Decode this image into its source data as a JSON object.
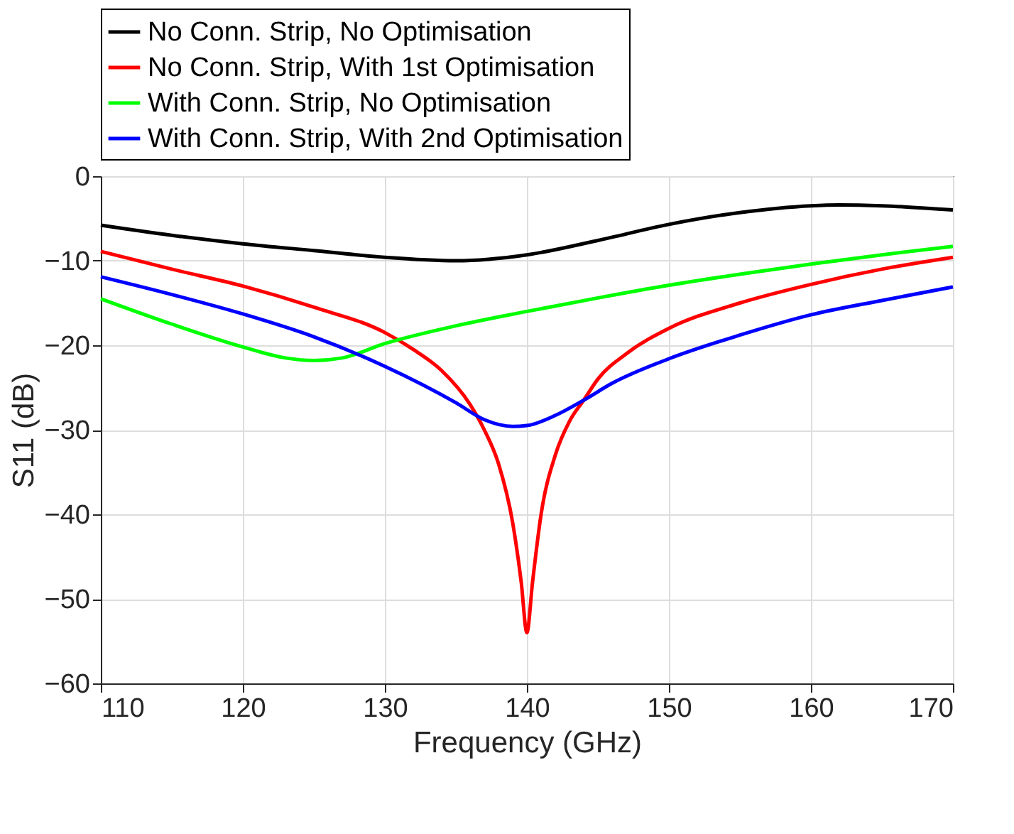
{
  "chart_data": {
    "type": "line",
    "xlabel": "Frequency (GHz)",
    "ylabel": "S11 (dB)",
    "xlim": [
      110,
      170
    ],
    "ylim": [
      -60,
      0
    ],
    "xticks": [
      110,
      120,
      130,
      140,
      150,
      160,
      170
    ],
    "yticks": [
      -60,
      -50,
      -40,
      -30,
      -20,
      -10,
      0
    ],
    "grid": true,
    "legend": "top",
    "marker": "none",
    "line_style": "solid",
    "series": [
      {
        "name": "No Conn. Strip, No Optimisation",
        "color": "#000000",
        "x": [
          110,
          115,
          120,
          125,
          130,
          135,
          140,
          145,
          150,
          155,
          160,
          162,
          165,
          170
        ],
        "values": [
          -5.8,
          -7,
          -8,
          -8.8,
          -9.6,
          -10,
          -9.3,
          -7.6,
          -5.7,
          -4.3,
          -3.5,
          -3.4,
          -3.5,
          -4
        ]
      },
      {
        "name": "No Conn. Strip, With 1st Optimisation",
        "color": "#ff0000",
        "x": [
          110,
          115,
          120,
          125,
          130,
          132,
          134,
          136,
          137,
          138,
          139,
          139.6,
          140,
          140.4,
          141,
          142,
          143,
          144,
          145,
          147,
          150,
          155,
          160,
          165,
          170
        ],
        "values": [
          -8.9,
          -11,
          -13,
          -15.5,
          -18.5,
          -20.5,
          -23,
          -27,
          -30,
          -34,
          -41,
          -48,
          -54,
          -48,
          -40,
          -33,
          -29,
          -26.5,
          -24,
          -21,
          -18,
          -15,
          -12.8,
          -11,
          -9.6
        ]
      },
      {
        "name": "With Conn. Strip, No Optimisation",
        "color": "#00ff00",
        "x": [
          110,
          115,
          120,
          123,
          125,
          127,
          130,
          135,
          140,
          145,
          150,
          155,
          160,
          165,
          170
        ],
        "values": [
          -14.5,
          -17.5,
          -20.2,
          -21.5,
          -21.8,
          -21.5,
          -19.8,
          -17.7,
          -16,
          -14.4,
          -12.9,
          -11.6,
          -10.4,
          -9.3,
          -8.3
        ]
      },
      {
        "name": "With Conn. Strip, With 2nd Optimisation",
        "color": "#0000ff",
        "x": [
          110,
          115,
          120,
          125,
          130,
          135,
          137,
          139,
          140,
          142,
          144,
          146,
          150,
          155,
          160,
          165,
          170
        ],
        "values": [
          -11.9,
          -14,
          -16.3,
          -19,
          -22.5,
          -26.8,
          -28.8,
          -29.6,
          -29.5,
          -28.3,
          -26.5,
          -24.5,
          -21.6,
          -18.8,
          -16.4,
          -14.7,
          -13.1
        ]
      }
    ]
  }
}
